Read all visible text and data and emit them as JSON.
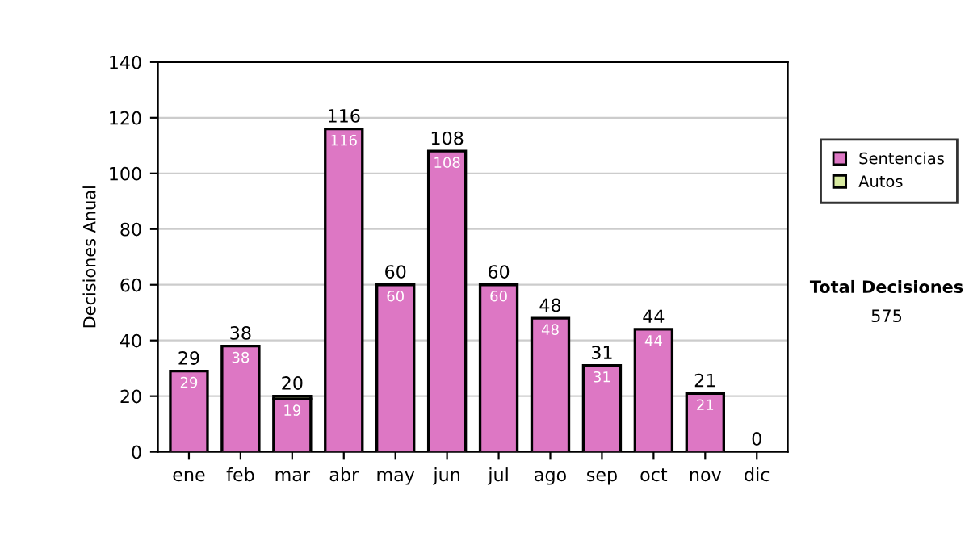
{
  "chart_data": {
    "type": "bar",
    "stacked": true,
    "ylabel": "Decisiones Anual",
    "categories": [
      "ene",
      "feb",
      "mar",
      "abr",
      "may",
      "jun",
      "jul",
      "ago",
      "sep",
      "oct",
      "nov",
      "dic"
    ],
    "series": [
      {
        "name": "Sentencias",
        "color": "#dd77c4",
        "values": [
          29,
          38,
          19,
          116,
          60,
          108,
          60,
          48,
          31,
          44,
          21,
          0
        ],
        "value_labels": [
          "29",
          "38",
          "19",
          "116",
          "60",
          "108",
          "60",
          "48",
          "31",
          "44",
          "21",
          null
        ]
      },
      {
        "name": "Autos",
        "color": "#d8eaa0",
        "values": [
          0,
          0,
          1,
          0,
          0,
          0,
          0,
          0,
          0,
          0,
          0,
          0
        ]
      }
    ],
    "totals": [
      "29",
      "38",
      "20",
      "116",
      "60",
      "108",
      "60",
      "48",
      "31",
      "44",
      "21",
      "0"
    ],
    "ylim": [
      0,
      140
    ],
    "yticks": [
      0,
      20,
      40,
      60,
      80,
      100,
      120,
      140
    ],
    "grid": "y",
    "legend": "right",
    "annotations": [
      "Total Decisiones",
      "575"
    ]
  }
}
